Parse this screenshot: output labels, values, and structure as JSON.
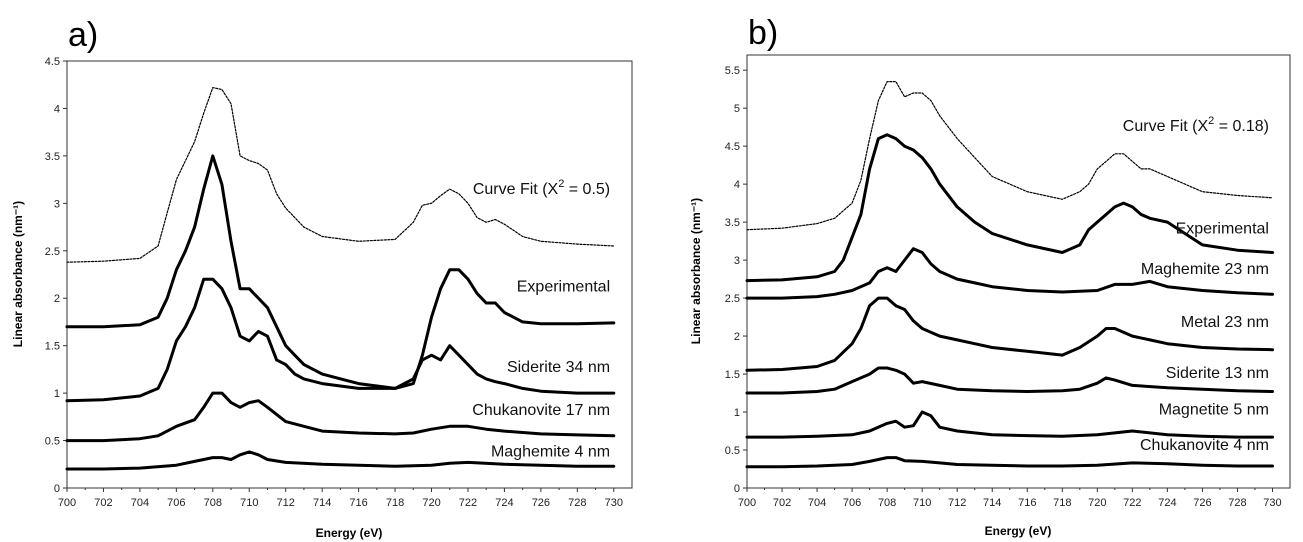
{
  "chart_data": [
    {
      "type": "line",
      "panel_label": "a)",
      "xlabel": "Energy (eV)",
      "ylabel": "Linear absorbance (nm⁻¹)",
      "xlim": [
        700,
        731
      ],
      "ylim": [
        0,
        4.5
      ],
      "xticks": [
        "700",
        "702",
        "704",
        "706",
        "708",
        "710",
        "712",
        "714",
        "716",
        "718",
        "720",
        "722",
        "724",
        "726",
        "728",
        "730"
      ],
      "yticks": [
        "0",
        "0.5",
        "1",
        "1.5",
        "2",
        "2.5",
        "3",
        "3.5",
        "4",
        "4.5"
      ],
      "grid": false,
      "series": [
        {
          "name": "Curve Fit (X2 = 0.5)",
          "label_main": "Curve Fit (X",
          "label_sup": "2",
          "label_tail": " = 0.5)",
          "style": "dotted",
          "label_pos": [
            729.8,
            3.1
          ],
          "x": [
            700,
            702,
            704,
            705,
            705.5,
            706,
            706.5,
            707,
            707.5,
            708,
            708.5,
            709,
            709.5,
            710,
            710.5,
            711,
            711.5,
            712,
            712.5,
            713,
            714,
            716,
            718,
            719,
            719.5,
            720,
            720.5,
            721,
            721.5,
            722,
            722.5,
            723,
            723.5,
            724,
            725,
            726,
            728,
            730
          ],
          "y": [
            2.38,
            2.39,
            2.42,
            2.55,
            2.9,
            3.25,
            3.45,
            3.65,
            3.95,
            4.22,
            4.2,
            4.05,
            3.5,
            3.45,
            3.42,
            3.35,
            3.1,
            2.95,
            2.85,
            2.75,
            2.65,
            2.6,
            2.62,
            2.8,
            2.98,
            3.0,
            3.08,
            3.15,
            3.1,
            3.0,
            2.85,
            2.8,
            2.83,
            2.78,
            2.65,
            2.6,
            2.57,
            2.55
          ]
        },
        {
          "name": "Experimental",
          "label_main": "Experimental",
          "style": "solid",
          "label_pos": [
            729.8,
            2.07
          ],
          "x": [
            700,
            702,
            704,
            705,
            705.5,
            706,
            706.5,
            707,
            707.5,
            708,
            708.5,
            709,
            709.5,
            710,
            710.5,
            711,
            711.5,
            712,
            712.5,
            713,
            714,
            716,
            718,
            719,
            719.5,
            720,
            720.5,
            721,
            721.5,
            722,
            722.5,
            723,
            723.5,
            724,
            725,
            726,
            728,
            730
          ],
          "y": [
            1.7,
            1.7,
            1.72,
            1.8,
            2.0,
            2.3,
            2.5,
            2.75,
            3.15,
            3.5,
            3.2,
            2.6,
            2.1,
            2.1,
            2.0,
            1.9,
            1.7,
            1.5,
            1.4,
            1.3,
            1.2,
            1.1,
            1.05,
            1.1,
            1.4,
            1.8,
            2.1,
            2.3,
            2.3,
            2.2,
            2.05,
            1.95,
            1.95,
            1.85,
            1.75,
            1.73,
            1.73,
            1.74
          ]
        },
        {
          "name": "Siderite 34 nm",
          "label_main": "Siderite 34 nm",
          "style": "solid",
          "label_pos": [
            729.8,
            1.22
          ],
          "x": [
            700,
            702,
            704,
            705,
            705.5,
            706,
            706.5,
            707,
            707.5,
            708,
            708.5,
            709,
            709.5,
            710,
            710.5,
            711,
            711.5,
            712,
            712.5,
            713,
            714,
            716,
            718,
            719,
            719.5,
            720,
            720.5,
            721,
            721.5,
            722,
            722.5,
            723,
            723.5,
            724,
            725,
            726,
            728,
            730
          ],
          "y": [
            0.92,
            0.93,
            0.97,
            1.05,
            1.25,
            1.55,
            1.7,
            1.9,
            2.2,
            2.2,
            2.1,
            1.9,
            1.6,
            1.55,
            1.65,
            1.6,
            1.35,
            1.3,
            1.2,
            1.15,
            1.1,
            1.05,
            1.05,
            1.15,
            1.35,
            1.4,
            1.35,
            1.5,
            1.4,
            1.3,
            1.2,
            1.15,
            1.12,
            1.1,
            1.05,
            1.02,
            1.0,
            1.0
          ]
        },
        {
          "name": "Chukanovite 17 nm",
          "label_main": "Chukanovite 17 nm",
          "style": "solid",
          "label_pos": [
            729.8,
            0.77
          ],
          "x": [
            700,
            702,
            704,
            705,
            706,
            707,
            707.5,
            708,
            708.5,
            709,
            709.5,
            710,
            710.5,
            711,
            712,
            713,
            714,
            716,
            718,
            719,
            720,
            721,
            722,
            723,
            724,
            726,
            728,
            730
          ],
          "y": [
            0.5,
            0.5,
            0.52,
            0.55,
            0.65,
            0.72,
            0.85,
            1.0,
            1.0,
            0.9,
            0.85,
            0.9,
            0.92,
            0.85,
            0.7,
            0.65,
            0.6,
            0.58,
            0.57,
            0.58,
            0.62,
            0.65,
            0.65,
            0.62,
            0.6,
            0.57,
            0.56,
            0.55
          ]
        },
        {
          "name": "Maghemite 4 nm",
          "label_main": "Maghemite 4 nm",
          "style": "solid",
          "label_pos": [
            729.8,
            0.33
          ],
          "x": [
            700,
            702,
            704,
            706,
            707,
            708,
            708.5,
            709,
            709.5,
            710,
            710.5,
            711,
            712,
            714,
            716,
            718,
            720,
            721,
            722,
            724,
            726,
            728,
            730
          ],
          "y": [
            0.2,
            0.2,
            0.21,
            0.24,
            0.28,
            0.32,
            0.32,
            0.3,
            0.35,
            0.38,
            0.35,
            0.3,
            0.27,
            0.25,
            0.24,
            0.23,
            0.24,
            0.26,
            0.27,
            0.25,
            0.24,
            0.23,
            0.23
          ]
        }
      ]
    },
    {
      "type": "line",
      "panel_label": "b)",
      "xlabel": "Energy (eV)",
      "ylabel": "Linear absorbance (nm⁻¹)",
      "xlim": [
        700,
        731
      ],
      "ylim": [
        0,
        5.7
      ],
      "xticks": [
        "700",
        "702",
        "704",
        "706",
        "708",
        "710",
        "712",
        "714",
        "716",
        "718",
        "720",
        "722",
        "724",
        "726",
        "728",
        "730"
      ],
      "yticks": [
        "0",
        "0.5",
        "1",
        "1.5",
        "2",
        "2.5",
        "3",
        "3.5",
        "4",
        "4.5",
        "5",
        "5.5"
      ],
      "grid": false,
      "series": [
        {
          "name": "Curve Fit (X2 = 0.18)",
          "label_main": "Curve Fit (X",
          "label_sup": "2",
          "label_tail": " = 0.18)",
          "style": "dotted",
          "label_pos": [
            729.8,
            4.7
          ],
          "x": [
            700,
            702,
            704,
            705,
            706,
            706.5,
            707,
            707.5,
            708,
            708.5,
            709,
            709.5,
            710,
            710.5,
            711,
            712,
            713,
            714,
            716,
            718,
            719,
            719.5,
            720,
            720.5,
            721,
            721.5,
            722,
            722.5,
            723,
            724,
            725,
            726,
            728,
            730
          ],
          "y": [
            3.4,
            3.42,
            3.48,
            3.55,
            3.75,
            4.05,
            4.6,
            5.1,
            5.35,
            5.35,
            5.15,
            5.2,
            5.2,
            5.1,
            4.9,
            4.6,
            4.35,
            4.1,
            3.9,
            3.8,
            3.9,
            4.0,
            4.2,
            4.3,
            4.4,
            4.4,
            4.3,
            4.2,
            4.2,
            4.1,
            4.0,
            3.9,
            3.85,
            3.82
          ]
        },
        {
          "name": "Experimental",
          "label_main": "Experimental",
          "style": "solid",
          "label_pos": [
            729.8,
            3.35
          ],
          "x": [
            700,
            702,
            704,
            705,
            705.5,
            706,
            706.5,
            707,
            707.5,
            708,
            708.5,
            709,
            709.5,
            710,
            710.5,
            711,
            712,
            713,
            714,
            716,
            718,
            719,
            719.5,
            720,
            720.5,
            721,
            721.5,
            722,
            722.5,
            723,
            724,
            725,
            726,
            728,
            730
          ],
          "y": [
            2.73,
            2.74,
            2.78,
            2.85,
            3.0,
            3.3,
            3.6,
            4.2,
            4.6,
            4.65,
            4.6,
            4.5,
            4.45,
            4.35,
            4.2,
            4.0,
            3.7,
            3.5,
            3.35,
            3.2,
            3.1,
            3.2,
            3.4,
            3.5,
            3.6,
            3.7,
            3.75,
            3.7,
            3.6,
            3.55,
            3.5,
            3.35,
            3.2,
            3.13,
            3.1
          ]
        },
        {
          "name": "Maghemite 23 nm",
          "label_main": "Maghemite 23 nm",
          "style": "solid",
          "label_pos": [
            729.8,
            2.82
          ],
          "x": [
            700,
            702,
            704,
            705,
            706,
            707,
            707.5,
            708,
            708.5,
            709,
            709.5,
            710,
            710.5,
            711,
            712,
            713,
            714,
            716,
            718,
            720,
            721,
            722,
            723,
            724,
            726,
            728,
            730
          ],
          "y": [
            2.5,
            2.5,
            2.52,
            2.55,
            2.6,
            2.7,
            2.85,
            2.9,
            2.85,
            3.0,
            3.15,
            3.1,
            2.95,
            2.85,
            2.75,
            2.7,
            2.65,
            2.6,
            2.58,
            2.6,
            2.68,
            2.68,
            2.72,
            2.65,
            2.6,
            2.57,
            2.55
          ]
        },
        {
          "name": "Metal 23 nm",
          "label_main": "Metal 23 nm",
          "style": "solid",
          "label_pos": [
            729.8,
            2.12
          ],
          "x": [
            700,
            702,
            704,
            705,
            706,
            706.5,
            707,
            707.5,
            708,
            708.5,
            709,
            709.5,
            710,
            711,
            712,
            713,
            714,
            716,
            718,
            719,
            720,
            720.5,
            721,
            722,
            723,
            724,
            726,
            728,
            730
          ],
          "y": [
            1.55,
            1.56,
            1.6,
            1.68,
            1.9,
            2.1,
            2.4,
            2.5,
            2.5,
            2.4,
            2.35,
            2.2,
            2.1,
            2.0,
            1.95,
            1.9,
            1.85,
            1.8,
            1.75,
            1.85,
            2.0,
            2.1,
            2.1,
            2.0,
            1.95,
            1.9,
            1.85,
            1.83,
            1.82
          ]
        },
        {
          "name": "Siderite 13 nm",
          "label_main": "Siderite 13 nm",
          "style": "solid",
          "label_pos": [
            729.8,
            1.45
          ],
          "x": [
            700,
            702,
            704,
            705,
            706,
            707,
            707.5,
            708,
            708.5,
            709,
            709.5,
            710,
            711,
            712,
            714,
            716,
            718,
            719,
            720,
            720.5,
            721,
            722,
            724,
            726,
            728,
            730
          ],
          "y": [
            1.25,
            1.25,
            1.27,
            1.3,
            1.4,
            1.5,
            1.58,
            1.58,
            1.55,
            1.5,
            1.38,
            1.4,
            1.35,
            1.3,
            1.28,
            1.27,
            1.28,
            1.3,
            1.38,
            1.45,
            1.42,
            1.35,
            1.32,
            1.3,
            1.28,
            1.27
          ]
        },
        {
          "name": "Magnetite 5 nm",
          "label_main": "Magnetite 5 nm",
          "style": "solid",
          "label_pos": [
            729.8,
            0.97
          ],
          "x": [
            700,
            702,
            704,
            706,
            707,
            708,
            708.5,
            709,
            709.5,
            710,
            710.5,
            711,
            712,
            714,
            716,
            718,
            720,
            722,
            724,
            726,
            728,
            730
          ],
          "y": [
            0.67,
            0.67,
            0.68,
            0.7,
            0.75,
            0.85,
            0.88,
            0.8,
            0.82,
            1.0,
            0.95,
            0.8,
            0.75,
            0.7,
            0.69,
            0.68,
            0.7,
            0.75,
            0.7,
            0.68,
            0.67,
            0.67
          ]
        },
        {
          "name": "Chukanovite 4 nm",
          "label_main": "Chukanovite 4 nm",
          "style": "solid",
          "label_pos": [
            729.8,
            0.5
          ],
          "x": [
            700,
            702,
            704,
            706,
            707,
            708,
            708.5,
            709,
            710,
            711,
            712,
            714,
            716,
            718,
            720,
            722,
            724,
            726,
            728,
            730
          ],
          "y": [
            0.28,
            0.28,
            0.29,
            0.31,
            0.35,
            0.4,
            0.4,
            0.36,
            0.35,
            0.33,
            0.31,
            0.3,
            0.29,
            0.29,
            0.3,
            0.33,
            0.32,
            0.3,
            0.29,
            0.29
          ]
        }
      ]
    }
  ]
}
